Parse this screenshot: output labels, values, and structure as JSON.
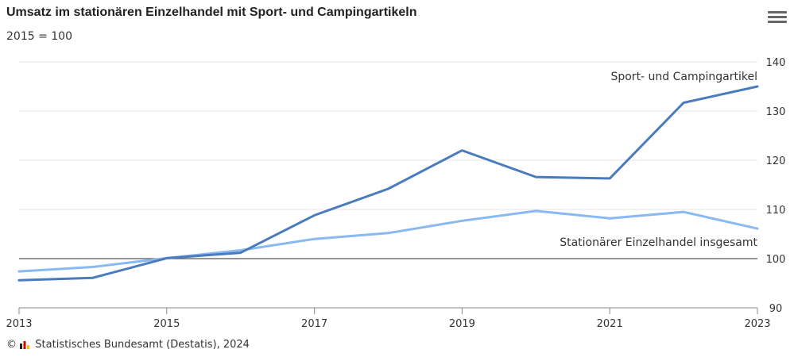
{
  "header": {
    "title": "Umsatz im stationären Einzelhandel mit Sport- und Campingartikeln",
    "subtitle": "2015 = 100",
    "menu_icon": "hamburger-menu-icon"
  },
  "footer": {
    "copyright": "©",
    "source": "Statistisches Bundesamt (Destatis), 2024"
  },
  "chart_data": {
    "type": "line",
    "title": "Umsatz im stationären Einzelhandel mit Sport- und Campingartikeln",
    "subtitle": "2015 = 100",
    "x": [
      2013,
      2014,
      2015,
      2016,
      2017,
      2018,
      2019,
      2020,
      2021,
      2022,
      2023
    ],
    "x_ticks": [
      "2013",
      "2015",
      "2017",
      "2019",
      "2021",
      "2023"
    ],
    "y_ticks": [
      "90",
      "100",
      "110",
      "120",
      "130",
      "140"
    ],
    "ylim": [
      90,
      140
    ],
    "y_axis_position": "right",
    "reference_line": 100,
    "grid": true,
    "series": [
      {
        "name": "Sport- und Campingartikel",
        "color": "#4a7bbd",
        "values": [
          95.6,
          96.1,
          100.1,
          101.2,
          108.8,
          114.2,
          122.0,
          116.6,
          116.3,
          131.7,
          135.0
        ]
      },
      {
        "name": "Stationärer Einzelhandel insgesamt",
        "color": "#88b9f0",
        "values": [
          97.4,
          98.3,
          100.1,
          101.7,
          104.0,
          105.2,
          107.7,
          109.7,
          108.2,
          109.5,
          106.1
        ]
      }
    ]
  }
}
